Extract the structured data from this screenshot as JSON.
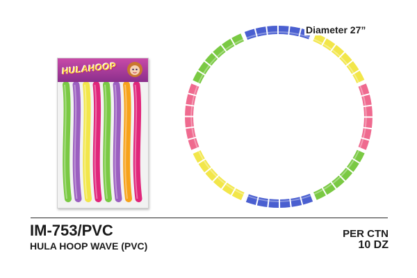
{
  "product": {
    "package_logo_text": "HULAHOOP",
    "diameter_label": "Diameter 27”",
    "model_code": "IM-753/PVC",
    "description": "HULA HOOP WAVE (PVC)",
    "per_ctn_label": "PER CTN",
    "per_ctn_value": "10 DZ"
  },
  "colors": {
    "green": "#7ac943",
    "purple": "#9b5fc0",
    "yellow": "#f2e64a",
    "magenta": "#e0257a",
    "pink": "#ef6a8f",
    "blue": "#4a5fd0",
    "orange": "#f7a21b"
  },
  "package_tube_colors": [
    "green",
    "purple",
    "yellow",
    "magenta",
    "green",
    "purple",
    "orange",
    "magenta"
  ],
  "hoop_segment_colors": [
    "blue",
    "yellow",
    "pink",
    "green",
    "blue",
    "yellow",
    "pink",
    "green"
  ]
}
